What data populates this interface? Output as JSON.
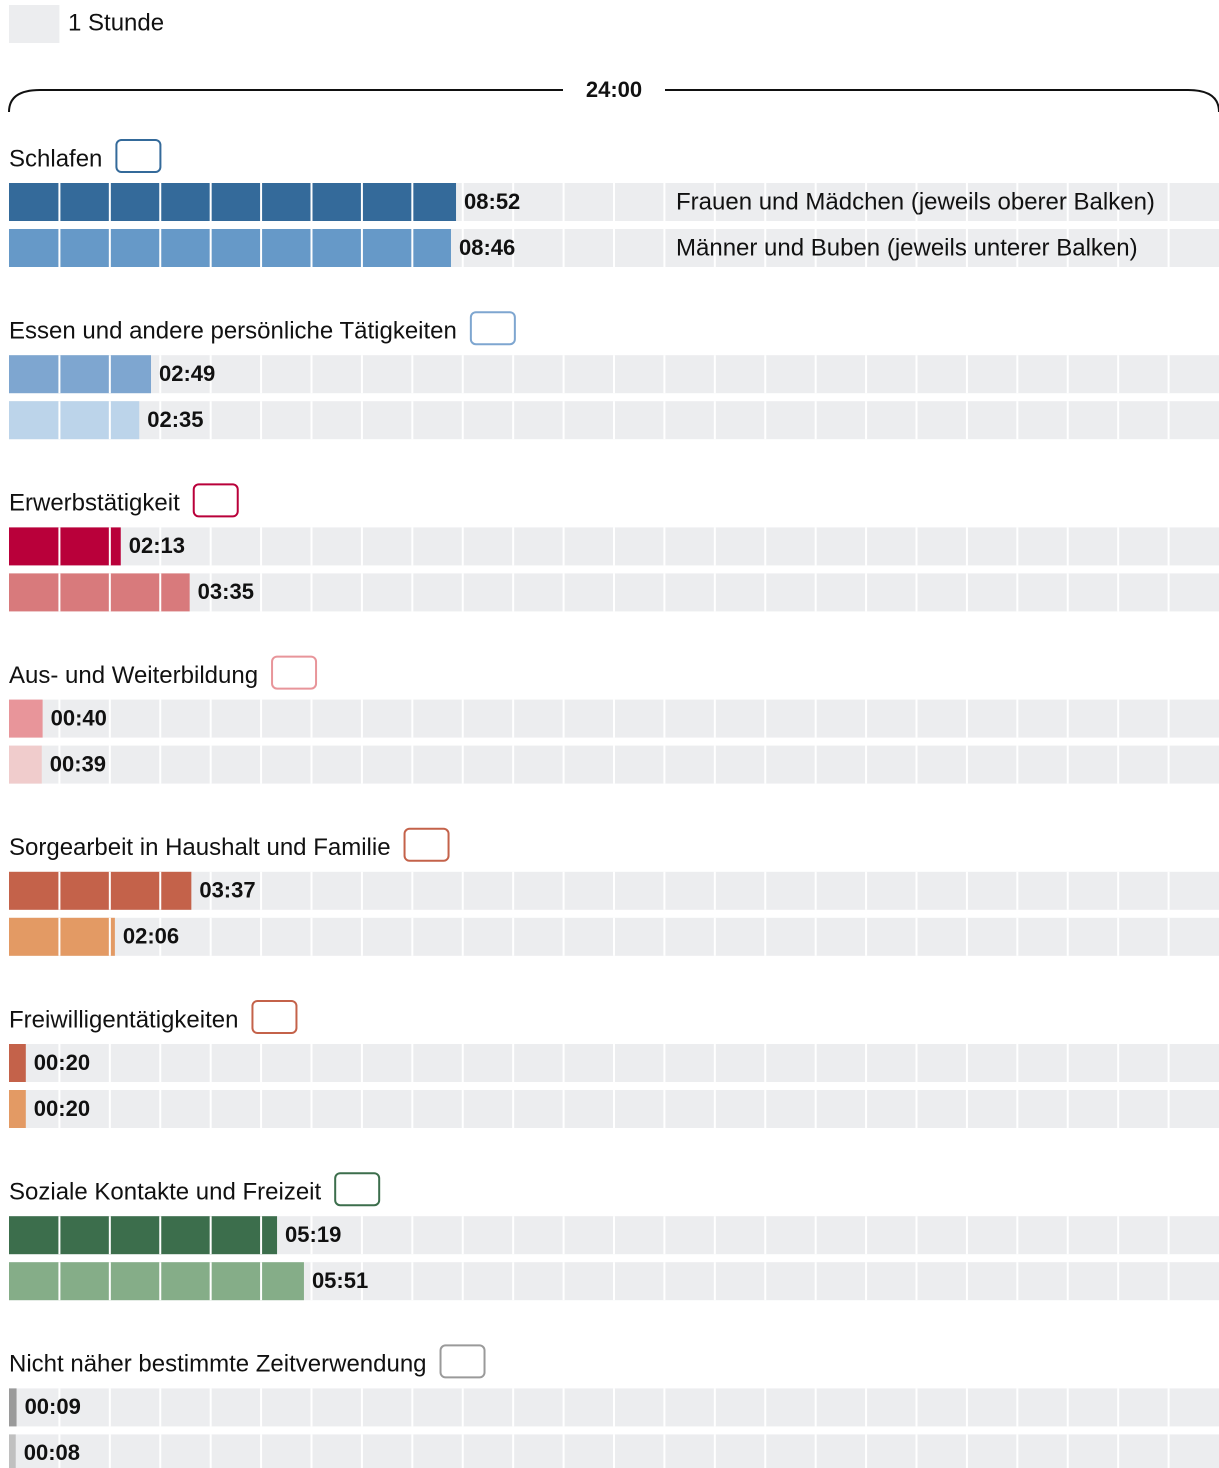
{
  "chart_data": {
    "type": "bar",
    "unit_label": "1 Stunde",
    "span_label": "24:00",
    "xlim": [
      0,
      1440
    ],
    "xticks": [
      0,
      60,
      120,
      180,
      240,
      300,
      360,
      420,
      480,
      540,
      600,
      660,
      720,
      780,
      840,
      900,
      960,
      1020,
      1080,
      1140,
      1200,
      1260,
      1320,
      1380,
      1440
    ],
    "grid": true,
    "categories": [
      "Schlafen",
      "Essen und andere persönliche Tätigkeiten",
      "Erwerbstätigkeit",
      "Aus- und Weiterbildung",
      "Sorgearbeit in Haushalt und Familie",
      "Freiwilligentätigkeiten",
      "Soziale Kontakte und Freizeit",
      "Nicht näher bestimmte Zeitverwendung"
    ],
    "series": [
      {
        "name": "Frauen und Mädchen (jeweils oberer Balken)",
        "colors": [
          "#346a9a",
          "#7ea6d0",
          "#b9003a",
          "#e8959a",
          "#c4624a",
          "#c4624a",
          "#3c6e4c",
          "#9a9a9a"
        ],
        "values": [
          532,
          169,
          133,
          40,
          217,
          20,
          319,
          9
        ],
        "value_labels": [
          "08:52",
          "02:49",
          "02:13",
          "00:40",
          "03:37",
          "00:20",
          "05:19",
          "00:09"
        ]
      },
      {
        "name": "Männer und Buben (jeweils unterer Balken)",
        "colors": [
          "#6699c8",
          "#bcd4ea",
          "#d87a7c",
          "#f0cccc",
          "#e39a64",
          "#e39a64",
          "#85ad88",
          "#c0c0c0"
        ],
        "values": [
          526,
          155,
          215,
          39,
          126,
          20,
          351,
          8
        ],
        "value_labels": [
          "08:46",
          "02:35",
          "03:35",
          "00:39",
          "02:06",
          "00:20",
          "05:51",
          "00:08"
        ]
      }
    ]
  }
}
